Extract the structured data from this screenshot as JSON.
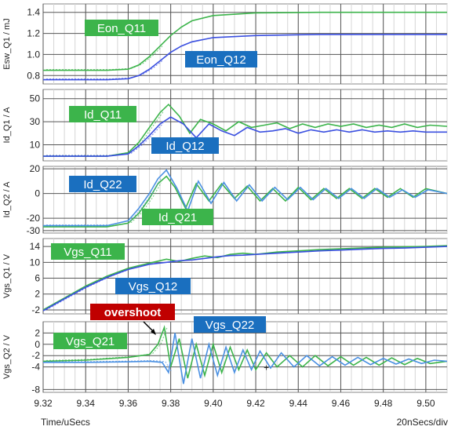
{
  "chart_data": {
    "type": "line",
    "x_range": [
      9.32,
      9.51
    ],
    "x_ticks": [
      "9.32",
      "9.34",
      "9.36",
      "9.38",
      "9.40",
      "9.42",
      "9.44",
      "9.46",
      "9.48",
      "9.50"
    ],
    "xlabel": "Time/uSecs",
    "time_scale": "20nSecs/div",
    "colors": {
      "q11": "#3cb44b",
      "q12": "#3a4fe0",
      "q21": "#3cb44b",
      "q22": "#4a90e2",
      "overshoot": "#c00000"
    },
    "panels": [
      {
        "ylabel": "Esw_Q1 / mJ",
        "ylim": [
          0.72,
          1.48
        ],
        "yticks": [
          "1.4",
          "1.2",
          "1.0",
          "0.8"
        ],
        "ytick_values": [
          1.4,
          1.2,
          1.0,
          0.8
        ],
        "labels": [
          {
            "text": "Eon_Q11",
            "color": "#3cb44b"
          },
          {
            "text": "Eon_Q12",
            "color": "#1a6fbf"
          }
        ],
        "series": [
          {
            "name": "Eon_Q11",
            "color": "#3cb44b",
            "x": [
              9.32,
              9.35,
              9.36,
              9.365,
              9.37,
              9.375,
              9.38,
              9.385,
              9.39,
              9.4,
              9.42,
              9.45,
              9.51
            ],
            "y": [
              0.85,
              0.85,
              0.86,
              0.9,
              0.98,
              1.08,
              1.18,
              1.26,
              1.32,
              1.37,
              1.395,
              1.4,
              1.4
            ]
          },
          {
            "name": "Eon_Q12",
            "color": "#3a4fe0",
            "x": [
              9.32,
              9.35,
              9.36,
              9.365,
              9.37,
              9.375,
              9.38,
              9.385,
              9.39,
              9.4,
              9.42,
              9.45,
              9.51
            ],
            "y": [
              0.76,
              0.76,
              0.77,
              0.8,
              0.86,
              0.94,
              1.02,
              1.08,
              1.12,
              1.16,
              1.18,
              1.19,
              1.19
            ]
          }
        ]
      },
      {
        "ylabel": "Id_Q1 / A",
        "ylim": [
          -4,
          58
        ],
        "yticks": [
          "50",
          "30",
          "10"
        ],
        "ytick_values": [
          50,
          30,
          10
        ],
        "labels": [
          {
            "text": "Id_Q11",
            "color": "#3cb44b"
          },
          {
            "text": "Id_Q12",
            "color": "#1a6fbf"
          }
        ],
        "series": [
          {
            "name": "Id_Q11",
            "color": "#3cb44b",
            "x": [
              9.32,
              9.35,
              9.36,
              9.365,
              9.37,
              9.375,
              9.379,
              9.384,
              9.389,
              9.394,
              9.4,
              9.406,
              9.412,
              9.418,
              9.424,
              9.43,
              9.436,
              9.442,
              9.448,
              9.454,
              9.46,
              9.466,
              9.472,
              9.478,
              9.484,
              9.49,
              9.496,
              9.502,
              9.51
            ],
            "y": [
              0,
              0,
              3,
              12,
              25,
              38,
              45,
              35,
              20,
              32,
              28,
              22,
              30,
              25,
              27,
              29,
              24,
              28,
              25,
              28,
              26,
              28,
              25,
              27,
              25,
              28,
              25,
              27,
              26
            ]
          },
          {
            "name": "Id_Q12",
            "color": "#3a4fe0",
            "x": [
              9.32,
              9.35,
              9.36,
              9.365,
              9.37,
              9.375,
              9.38,
              9.386,
              9.392,
              9.398,
              9.404,
              9.41,
              9.416,
              9.422,
              9.428,
              9.434,
              9.44,
              9.446,
              9.452,
              9.458,
              9.464,
              9.47,
              9.476,
              9.482,
              9.488,
              9.494,
              9.5,
              9.51
            ],
            "y": [
              0,
              0,
              2,
              9,
              18,
              28,
              34,
              28,
              16,
              28,
              22,
              18,
              25,
              21,
              22,
              24,
              20,
              23,
              21,
              23,
              21,
              23,
              21,
              22,
              21,
              22,
              21,
              21
            ]
          }
        ]
      },
      {
        "ylabel": "Id_Q2 / A",
        "ylim": [
          -32,
          22
        ],
        "yticks": [
          "20",
          "0",
          "-20",
          "-30"
        ],
        "ytick_values": [
          20,
          0,
          -20,
          -30
        ],
        "labels": [
          {
            "text": "Id_Q22",
            "color": "#1a6fbf"
          },
          {
            "text": "Id_Q21",
            "color": "#3cb44b"
          }
        ],
        "series": [
          {
            "name": "Id_Q21",
            "color": "#3cb44b",
            "x": [
              9.32,
              9.35,
              9.36,
              9.365,
              9.37,
              9.374,
              9.378,
              9.382,
              9.387,
              9.392,
              9.398,
              9.404,
              9.41,
              9.416,
              9.422,
              9.428,
              9.434,
              9.44,
              9.446,
              9.452,
              9.458,
              9.464,
              9.47,
              9.476,
              9.482,
              9.488,
              9.494,
              9.5,
              9.51
            ],
            "y": [
              -27,
              -27,
              -24,
              -16,
              -4,
              8,
              14,
              5,
              -12,
              8,
              -6,
              8,
              -4,
              6,
              -6,
              4,
              -6,
              5,
              -5,
              4,
              -4,
              4,
              -4,
              4,
              -3,
              4,
              -3,
              4,
              0
            ]
          },
          {
            "name": "Id_Q22",
            "color": "#4a90e2",
            "x": [
              9.32,
              9.35,
              9.36,
              9.365,
              9.37,
              9.374,
              9.378,
              9.383,
              9.388,
              9.393,
              9.399,
              9.405,
              9.411,
              9.417,
              9.423,
              9.429,
              9.435,
              9.441,
              9.447,
              9.453,
              9.459,
              9.465,
              9.471,
              9.477,
              9.483,
              9.489,
              9.495,
              9.501,
              9.51
            ],
            "y": [
              -26,
              -26,
              -22,
              -12,
              0,
              12,
              19,
              4,
              -14,
              10,
              -8,
              9,
              -6,
              7,
              -6,
              5,
              -5,
              5,
              -5,
              4,
              -4,
              4,
              -4,
              4,
              -3,
              3,
              -3,
              3,
              0
            ]
          }
        ]
      },
      {
        "ylabel": "Vgs_Q1 / V",
        "ylim": [
          -3,
          16
        ],
        "yticks": [
          "14",
          "10",
          "6",
          "2",
          "-2"
        ],
        "ytick_values": [
          14,
          10,
          6,
          2,
          -2
        ],
        "labels": [
          {
            "text": "Vgs_Q11",
            "color": "#3cb44b"
          },
          {
            "text": "Vgs_Q12",
            "color": "#1a6fbf"
          }
        ],
        "series": [
          {
            "name": "Vgs_Q11",
            "color": "#3cb44b",
            "x": [
              9.32,
              9.33,
              9.34,
              9.35,
              9.36,
              9.37,
              9.378,
              9.384,
              9.39,
              9.396,
              9.402,
              9.408,
              9.414,
              9.42,
              9.43,
              9.44,
              9.45,
              9.46,
              9.47,
              9.48,
              9.49,
              9.5,
              9.51
            ],
            "y": [
              -2,
              1,
              4,
              6.5,
              8.5,
              9.8,
              10.8,
              10.2,
              11.0,
              11.6,
              11.2,
              12.0,
              12.3,
              12.0,
              12.6,
              12.9,
              13.2,
              13.4,
              13.6,
              13.8,
              13.9,
              14.0,
              14.2
            ]
          },
          {
            "name": "Vgs_Q12",
            "color": "#3a4fe0",
            "x": [
              9.32,
              9.33,
              9.34,
              9.35,
              9.36,
              9.37,
              9.378,
              9.384,
              9.39,
              9.396,
              9.402,
              9.408,
              9.414,
              9.42,
              9.43,
              9.44,
              9.45,
              9.46,
              9.47,
              9.48,
              9.49,
              9.5,
              9.51
            ],
            "y": [
              -2.2,
              0.8,
              3.7,
              6.2,
              8.2,
              9.5,
              10.0,
              10.4,
              10.6,
              11.0,
              11.4,
              11.7,
              11.8,
              12.0,
              12.3,
              12.6,
              12.9,
              13.1,
              13.3,
              13.5,
              13.6,
              13.8,
              14.0
            ]
          }
        ]
      },
      {
        "ylabel": "Vgs_Q2 / V",
        "ylim": [
          -8.5,
          4
        ],
        "yticks": [
          "2",
          "0",
          "-2",
          "-4",
          "-8"
        ],
        "ytick_values": [
          2,
          0,
          -2,
          -4,
          -8
        ],
        "labels": [
          {
            "text": "Vgs_Q21",
            "color": "#3cb44b"
          },
          {
            "text": "Vgs_Q22",
            "color": "#1a6fbf"
          },
          {
            "text": "overshoot",
            "color": "#c00000"
          }
        ],
        "marker": {
          "x": 9.425,
          "y": -4,
          "symbol": "+"
        },
        "series": [
          {
            "name": "Vgs_Q21",
            "color": "#3cb44b",
            "x": [
              9.32,
              9.34,
              9.36,
              9.37,
              9.374,
              9.377,
              9.38,
              9.384,
              9.388,
              9.392,
              9.396,
              9.4,
              9.404,
              9.408,
              9.412,
              9.416,
              9.42,
              9.425,
              9.43,
              9.436,
              9.442,
              9.448,
              9.454,
              9.46,
              9.466,
              9.472,
              9.478,
              9.484,
              9.49,
              9.496,
              9.502,
              9.51
            ],
            "y": [
              -3,
              -2.8,
              -2.3,
              -1.8,
              0,
              3,
              -4,
              1,
              -6,
              0,
              -5.5,
              0,
              -5,
              -0.5,
              -4.5,
              -1,
              -4.5,
              -1.5,
              -4,
              -2,
              -4,
              -2,
              -3.8,
              -2.2,
              -3.7,
              -2.3,
              -3.7,
              -2.4,
              -3.6,
              -2.5,
              -3.4,
              -3
            ]
          },
          {
            "name": "Vgs_Q22",
            "color": "#4a90e2",
            "x": [
              9.32,
              9.34,
              9.36,
              9.37,
              9.376,
              9.379,
              9.382,
              9.386,
              9.39,
              9.394,
              9.398,
              9.402,
              9.406,
              9.41,
              9.414,
              9.418,
              9.422,
              9.427,
              9.432,
              9.438,
              9.444,
              9.45,
              9.456,
              9.462,
              9.468,
              9.474,
              9.48,
              9.486,
              9.492,
              9.498,
              9.504,
              9.51
            ],
            "y": [
              -3.2,
              -3.2,
              -3.1,
              -3,
              -3.2,
              -5,
              2,
              -7,
              1,
              -6,
              0,
              -5.5,
              -0.5,
              -5,
              -1,
              -4.5,
              -1.2,
              -4.2,
              -1.5,
              -4,
              -2,
              -3.8,
              -2.2,
              -3.7,
              -2.3,
              -3.6,
              -2.5,
              -3.5,
              -2.6,
              -3.4,
              -2.8,
              -3
            ]
          }
        ]
      }
    ]
  }
}
